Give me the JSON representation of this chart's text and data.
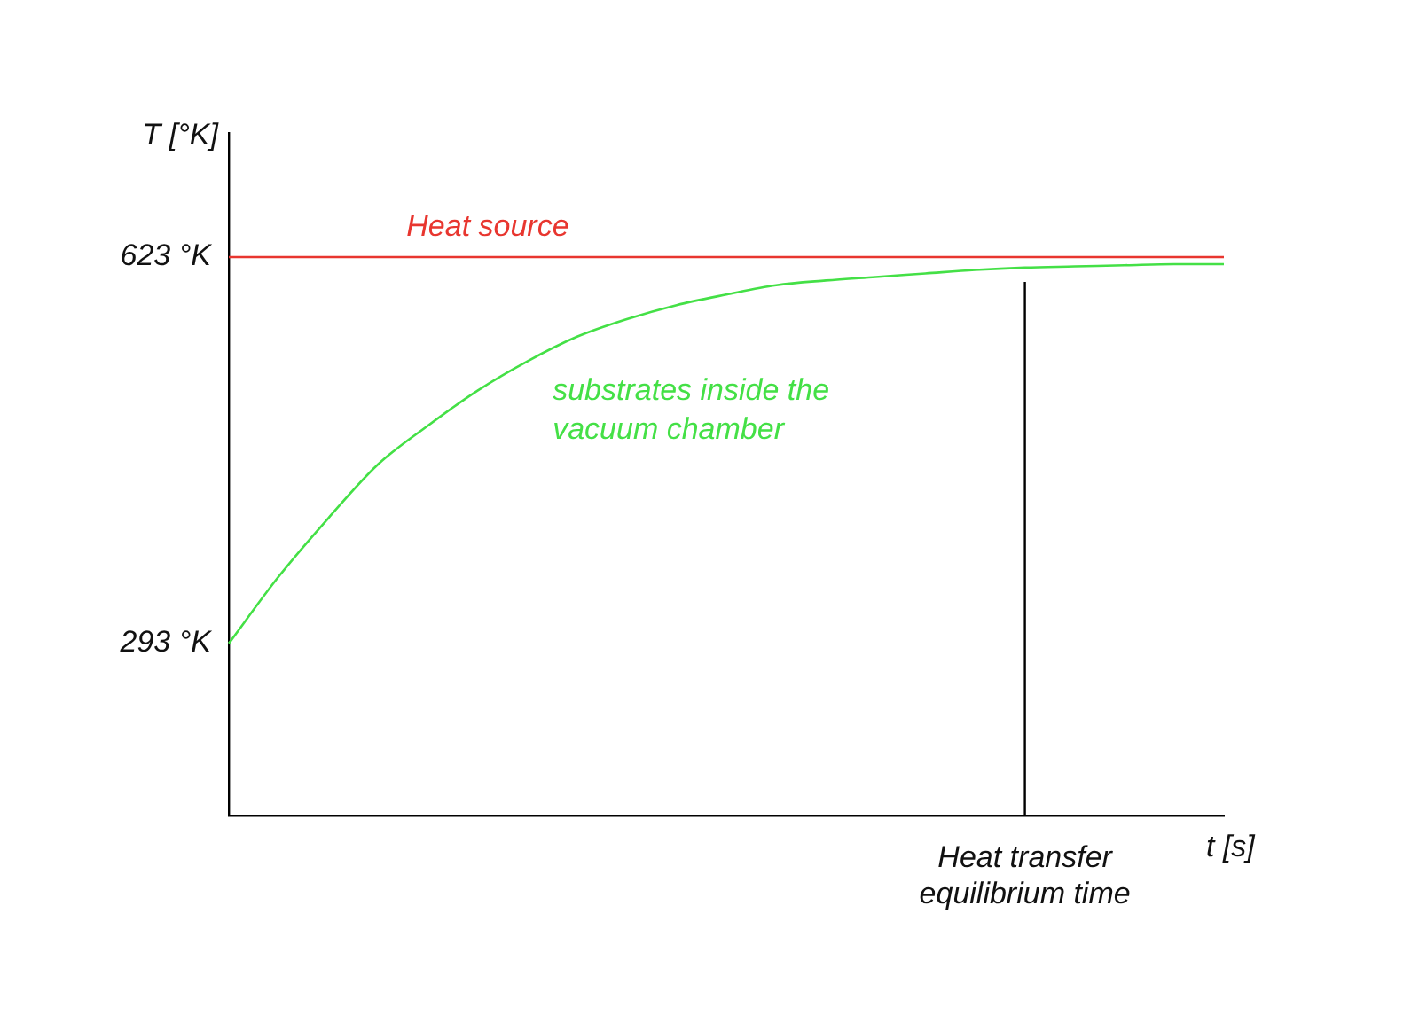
{
  "chart_data": {
    "type": "line",
    "xlabel": "t [s]",
    "ylabel": "T [°K]",
    "categories": [
      null,
      null,
      null,
      null,
      null,
      null,
      null,
      null,
      null,
      null,
      null,
      null,
      null,
      null,
      null,
      null,
      "Heat transfer equilibrium time",
      null,
      null,
      null,
      null
    ],
    "series": [
      {
        "name": "Heat source",
        "color": "#e8362f",
        "values": [
          623,
          623,
          623,
          623,
          623,
          623,
          623,
          623,
          623,
          623,
          623,
          623,
          623,
          623,
          623,
          623,
          623,
          623,
          623,
          623,
          623
        ]
      },
      {
        "name": "substrates inside the vacuum chamber",
        "color": "#44e046",
        "values": [
          293,
          350,
          400,
          446,
          479,
          509,
          534,
          555,
          570,
          582,
          591,
          599,
          603,
          606,
          609,
          612,
          614,
          615,
          616,
          617,
          617
        ]
      }
    ],
    "ylim": [
      146,
      729
    ],
    "yticks": [
      {
        "value": 293,
        "label": "293 °K"
      },
      {
        "value": 623,
        "label": "623 °K"
      }
    ],
    "ref_lines": [
      {
        "axis": "x",
        "value": "Heat transfer equilibrium time",
        "color": "#000000"
      }
    ],
    "grid": false,
    "legend": false,
    "marker": "none",
    "line_style": "solid"
  }
}
